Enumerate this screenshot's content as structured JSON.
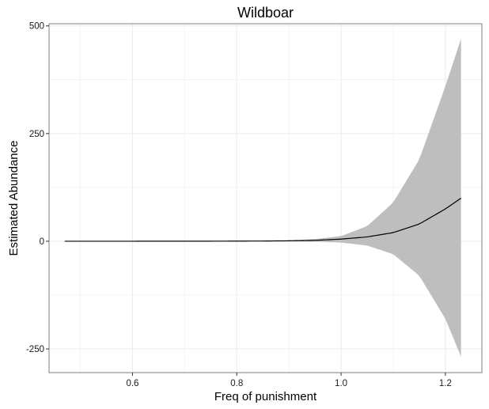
{
  "chart_data": {
    "type": "line",
    "title": "Wildboar",
    "xlabel": "Freq of punishment",
    "ylabel": "Estimated Abundance",
    "xlim": [
      0.44,
      1.27
    ],
    "ylim": [
      -305,
      505
    ],
    "x_ticks": [
      0.6,
      0.8,
      1.0,
      1.2
    ],
    "x_tick_labels": [
      "0.6",
      "0.8",
      "1.0",
      "1.2"
    ],
    "y_ticks": [
      -250,
      0,
      250,
      500
    ],
    "y_tick_labels": [
      "-250",
      "0",
      "250",
      "500"
    ],
    "grid": true,
    "legend": "none",
    "series": [
      {
        "x": [
          0.47,
          0.55,
          0.65,
          0.75,
          0.85,
          0.9,
          0.95,
          1.0,
          1.05,
          1.1,
          1.15,
          1.2,
          1.23
        ],
        "y": [
          0.0,
          0.0,
          0.1,
          0.2,
          0.5,
          1,
          2,
          5,
          10,
          20,
          40,
          75,
          100
        ],
        "lower": [
          0.0,
          0.0,
          0.0,
          0.0,
          0.0,
          -0.5,
          -1,
          -3,
          -10,
          -30,
          -80,
          -180,
          -268
        ],
        "upper": [
          0.0,
          0.0,
          0.1,
          0.3,
          1.0,
          2,
          5,
          12,
          35,
          90,
          190,
          360,
          470
        ]
      }
    ],
    "colors": {
      "line": "#000000",
      "ribbon": "#bebebe",
      "grid": "#ebebeb",
      "border": "#7f7f7f"
    }
  }
}
